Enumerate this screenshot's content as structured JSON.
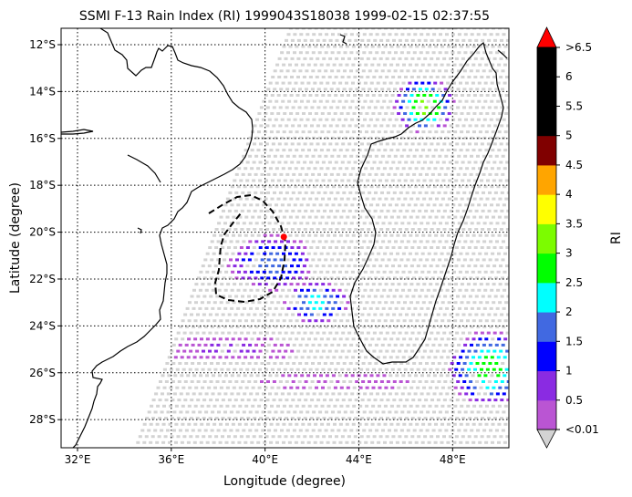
{
  "chart_data": {
    "type": "heatmap",
    "title": "SSMI F-13 Rain Index (RI) 1999043S18038 1999-02-15 02:37:55",
    "xlabel": "Longitude (degree)",
    "ylabel": "Latitude (degree)",
    "xlim": [
      31.3,
      50.4
    ],
    "ylim": [
      -29.2,
      -11.3
    ],
    "x_ticks": [
      {
        "value": 32,
        "label": "32°E"
      },
      {
        "value": 36,
        "label": "36°E"
      },
      {
        "value": 40,
        "label": "40°E"
      },
      {
        "value": 44,
        "label": "44°E"
      },
      {
        "value": 48,
        "label": "48°E"
      }
    ],
    "y_ticks": [
      {
        "value": -12,
        "label": "12°S"
      },
      {
        "value": -14,
        "label": "14°S"
      },
      {
        "value": -16,
        "label": "16°S"
      },
      {
        "value": -18,
        "label": "18°S"
      },
      {
        "value": -20,
        "label": "20°S"
      },
      {
        "value": -22,
        "label": "22°S"
      },
      {
        "value": -24,
        "label": "24°S"
      },
      {
        "value": -26,
        "label": "26°S"
      },
      {
        "value": -28,
        "label": "28°S"
      }
    ],
    "grid": true,
    "colorbar": {
      "label": "RI",
      "tick_labels": [
        "<0.01",
        "0.5",
        "1",
        "1.5",
        "2",
        "2.5",
        "3",
        "3.5",
        "4",
        "4.5",
        "5",
        "5.5",
        "6",
        ">6.5"
      ],
      "colors": [
        "#ba55d3",
        "#8a2be2",
        "#0000ff",
        "#4169e1",
        "#00ffff",
        "#00ff00",
        "#7cfc00",
        "#ffff00",
        "#ffa500",
        "#800000",
        "#000000",
        "#000000",
        "#000000"
      ],
      "over_color": "#ff0000",
      "under_color": "#d3d3d3"
    },
    "no_rain_color": "#d3d3d3",
    "storm_center": {
      "lon": 40.8,
      "lat": -20.2,
      "color": "#ff0000"
    },
    "rain_patches": [
      {
        "lon": 40.3,
        "lat": -21.3,
        "rx": 1.9,
        "ry": 1.2,
        "peak_ri": 1.6
      },
      {
        "lon": 42.2,
        "lat": -23.0,
        "rx": 1.4,
        "ry": 0.9,
        "peak_ri": 2.2
      },
      {
        "lon": 46.8,
        "lat": -14.6,
        "rx": 1.3,
        "ry": 1.2,
        "peak_ri": 3.2
      },
      {
        "lon": 49.6,
        "lat": -25.8,
        "rx": 1.8,
        "ry": 1.6,
        "peak_ri": 2.7
      },
      {
        "lon": 38.5,
        "lat": -25.0,
        "rx": 2.8,
        "ry": 0.6,
        "peak_ri": 0.5
      },
      {
        "lon": 43.0,
        "lat": -26.4,
        "rx": 3.2,
        "ry": 0.4,
        "peak_ri": 0.4
      }
    ]
  }
}
